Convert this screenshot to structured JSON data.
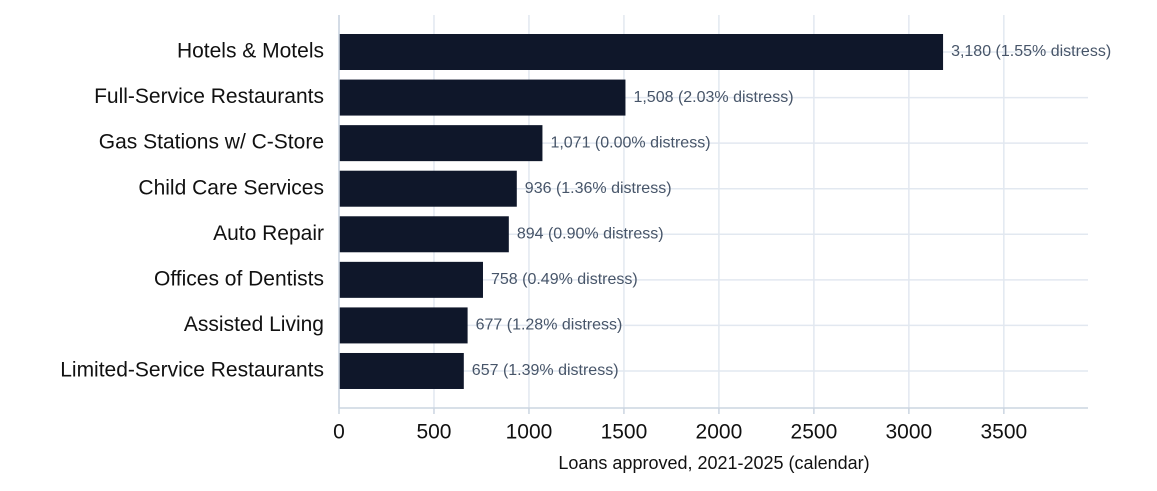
{
  "chart_data": {
    "type": "barh",
    "xlabel": "Loans approved, 2021-2025 (calendar)",
    "categories": [
      "Hotels & Motels",
      "Full-Service Restaurants",
      "Gas Stations w/ C-Store",
      "Child Care Services",
      "Auto Repair",
      "Offices of Dentists",
      "Assisted Living",
      "Limited-Service Restaurants"
    ],
    "values": [
      3180,
      1508,
      1071,
      936,
      894,
      758,
      677,
      657
    ],
    "value_labels": [
      "3,180  (1.55% distress)",
      "1,508  (2.03% distress)",
      "1,071  (0.00% distress)",
      "936  (1.36% distress)",
      "894  (0.90% distress)",
      "758  (0.49% distress)",
      "677  (1.28% distress)",
      "657  (1.39% distress)"
    ],
    "color": "#0f172a",
    "xlim": [
      0,
      3943
    ],
    "xticks": [
      0,
      500,
      1000,
      1500,
      2000,
      2500,
      3000,
      3500
    ],
    "grid": true
  }
}
